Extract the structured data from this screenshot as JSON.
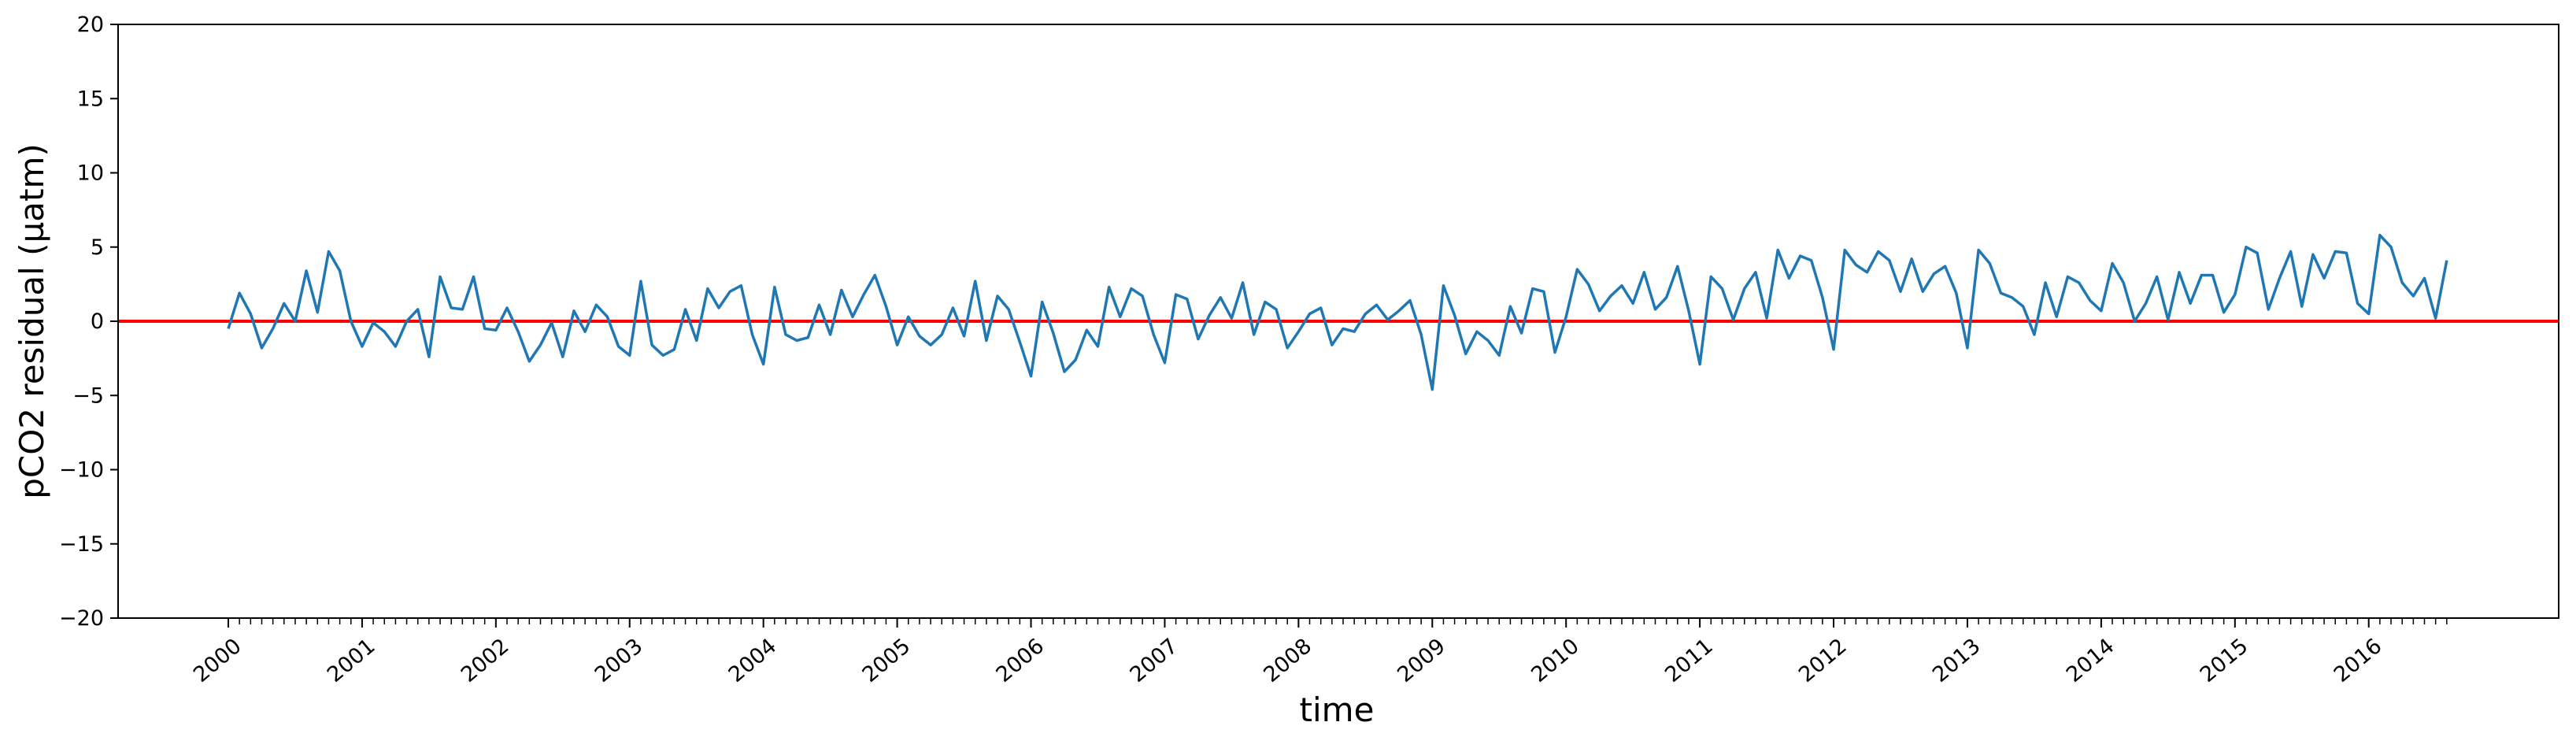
{
  "chart_data": {
    "type": "line",
    "xlabel": "time",
    "ylabel": "pCO2 residual (µatm)",
    "ylim": [
      -20,
      20
    ],
    "yticks": [
      -20,
      -15,
      -10,
      -5,
      0,
      5,
      10,
      15,
      20
    ],
    "ytick_labels": [
      "−20",
      "−15",
      "−10",
      "−5",
      "0",
      "5",
      "10",
      "15",
      "20"
    ],
    "xtick_labels": [
      "2000",
      "2001",
      "2002",
      "2003",
      "2004",
      "2005",
      "2006",
      "2007",
      "2008",
      "2009",
      "2010",
      "2011",
      "2012",
      "2013",
      "2014",
      "2015",
      "2016"
    ],
    "x_start": "2000-01",
    "x_step": "monthly",
    "grid": false,
    "series": [
      {
        "color": "#1f77b4",
        "values": [
          -0.5,
          1.9,
          0.5,
          -1.8,
          -0.5,
          1.2,
          0.0,
          3.4,
          0.6,
          4.7,
          3.4,
          0.0,
          -1.7,
          -0.1,
          -0.7,
          -1.7,
          0.0,
          0.8,
          -2.4,
          3.0,
          0.9,
          0.8,
          3.0,
          -0.5,
          -0.6,
          0.9,
          -0.7,
          -2.7,
          -1.6,
          -0.1,
          -2.4,
          0.7,
          -0.7,
          1.1,
          0.3,
          -1.7,
          -2.3,
          2.7,
          -1.6,
          -2.3,
          -1.9,
          0.8,
          -1.3,
          2.2,
          0.9,
          2.0,
          2.4,
          -0.9,
          -2.9,
          2.3,
          -0.9,
          -1.3,
          -1.1,
          1.1,
          -0.9,
          2.1,
          0.3,
          1.8,
          3.1,
          1.0,
          -1.6,
          0.3,
          -1.0,
          -1.6,
          -0.9,
          0.9,
          -1.0,
          2.7,
          -1.3,
          1.7,
          0.8,
          -1.4,
          -3.7,
          1.3,
          -0.8,
          -3.4,
          -2.6,
          -0.6,
          -1.7,
          2.3,
          0.3,
          2.2,
          1.7,
          -0.9,
          -2.8,
          1.8,
          1.5,
          -1.2,
          0.4,
          1.6,
          0.2,
          2.6,
          -0.9,
          1.3,
          0.8,
          -1.8,
          -0.7,
          0.5,
          0.9,
          -1.6,
          -0.5,
          -0.7,
          0.5,
          1.1,
          0.1,
          0.7,
          1.4,
          -0.9,
          -4.6,
          2.4,
          0.4,
          -2.2,
          -0.7,
          -1.3,
          -2.3,
          1.0,
          -0.8,
          2.2,
          2.0,
          -2.1,
          0.3,
          3.5,
          2.5,
          0.7,
          1.7,
          2.4,
          1.2,
          3.3,
          0.8,
          1.6,
          3.7,
          0.7,
          -2.9,
          3.0,
          2.2,
          0.1,
          2.2,
          3.3,
          0.2,
          4.8,
          2.9,
          4.4,
          4.1,
          1.6,
          -1.9,
          4.8,
          3.8,
          3.3,
          4.7,
          4.1,
          2.0,
          4.2,
          2.0,
          3.2,
          3.7,
          1.9,
          -1.8,
          4.8,
          3.9,
          1.9,
          1.6,
          1.0,
          -0.9,
          2.6,
          0.3,
          3.0,
          2.6,
          1.4,
          0.7,
          3.9,
          2.6,
          0.0,
          1.2,
          3.0,
          0.1,
          3.3,
          1.2,
          3.1,
          3.1,
          0.6,
          1.8,
          5.0,
          4.6,
          0.8,
          2.9,
          4.7,
          1.0,
          4.5,
          2.9,
          4.7,
          4.6,
          1.2,
          0.5,
          5.8,
          5.0,
          2.6,
          1.7,
          2.9,
          0.2,
          4.1
        ]
      }
    ],
    "reference_line": {
      "y": 0,
      "color": "#ff0000"
    }
  }
}
